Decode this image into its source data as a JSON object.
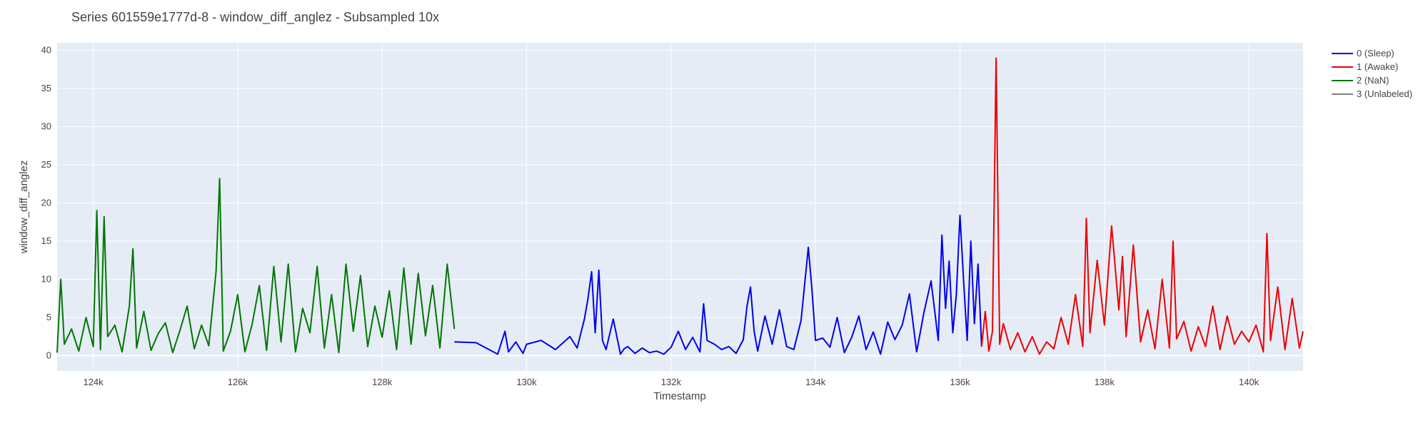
{
  "chart_data": {
    "type": "line",
    "title": "Series 601559e1777d-8 - window_diff_anglez - Subsampled 10x",
    "xlabel": "Timestamp",
    "ylabel": "window_diff_anglez",
    "xlim": [
      123500,
      140750
    ],
    "ylim": [
      -2,
      41
    ],
    "xticks": [
      124000,
      126000,
      128000,
      130000,
      132000,
      134000,
      136000,
      138000,
      140000
    ],
    "xtick_labels": [
      "124k",
      "126k",
      "128k",
      "130k",
      "132k",
      "134k",
      "136k",
      "138k",
      "140k"
    ],
    "yticks": [
      0,
      5,
      10,
      15,
      20,
      25,
      30,
      35,
      40
    ],
    "ytick_labels": [
      "0",
      "5",
      "10",
      "15",
      "20",
      "25",
      "30",
      "35",
      "40"
    ],
    "grid": true,
    "legend_position": "top-right outside",
    "series": [
      {
        "name": "0 (Sleep)",
        "color": "#0000ee",
        "x": [
          129000,
          129300,
          129600,
          129700,
          129750,
          129850,
          129950,
          130000,
          130200,
          130400,
          130600,
          130700,
          130800,
          130850,
          130900,
          130950,
          131000,
          131050,
          131100,
          131200,
          131300,
          131350,
          131400,
          131500,
          131600,
          131700,
          131800,
          131900,
          132000,
          132100,
          132200,
          132300,
          132400,
          132450,
          132500,
          132600,
          132700,
          132800,
          132900,
          133000,
          133050,
          133100,
          133150,
          133200,
          133300,
          133400,
          133500,
          133600,
          133700,
          133800,
          133900,
          133950,
          134000,
          134100,
          134200,
          134300,
          134400,
          134500,
          134600,
          134700,
          134800,
          134900,
          135000,
          135100,
          135200,
          135300,
          135400,
          135500,
          135600,
          135700,
          135750,
          135800,
          135850,
          135900,
          135950,
          136000,
          136050,
          136100,
          136150,
          136200,
          136250,
          136300
        ],
        "y": [
          1.8,
          1.7,
          0.2,
          3.2,
          0.5,
          1.8,
          0.3,
          1.5,
          2.0,
          0.8,
          2.5,
          1.0,
          4.8,
          7.5,
          11.0,
          3.0,
          11.2,
          2.0,
          0.8,
          4.8,
          0.2,
          0.9,
          1.2,
          0.3,
          1.0,
          0.4,
          0.6,
          0.2,
          1.1,
          3.2,
          0.8,
          2.4,
          0.5,
          6.8,
          2.0,
          1.5,
          0.8,
          1.2,
          0.3,
          2.1,
          6.4,
          9.0,
          3.2,
          0.6,
          5.2,
          1.5,
          6.0,
          1.2,
          0.8,
          4.6,
          14.2,
          8.8,
          2.0,
          2.3,
          1.1,
          5.0,
          0.4,
          2.4,
          5.2,
          0.8,
          3.1,
          0.2,
          4.4,
          2.1,
          4.0,
          8.1,
          0.5,
          5.6,
          9.8,
          2.0,
          15.8,
          6.2,
          12.4,
          3.0,
          8.0,
          18.4,
          9.8,
          2.0,
          15.0,
          4.2,
          12.0,
          1.2
        ]
      },
      {
        "name": "1 (Awake)",
        "color": "#ee0000",
        "x": [
          136300,
          136350,
          136400,
          136450,
          136500,
          136550,
          136600,
          136700,
          136800,
          136900,
          137000,
          137100,
          137200,
          137300,
          137400,
          137500,
          137600,
          137700,
          137750,
          137800,
          137900,
          138000,
          138100,
          138200,
          138250,
          138300,
          138400,
          138500,
          138600,
          138700,
          138800,
          138900,
          138950,
          139000,
          139100,
          139200,
          139300,
          139400,
          139500,
          139600,
          139700,
          139800,
          139900,
          140000,
          140100,
          140200,
          140250,
          140300,
          140400,
          140500,
          140600,
          140700,
          140750
        ],
        "y": [
          1.2,
          5.8,
          0.6,
          3.2,
          39.0,
          1.5,
          4.2,
          0.8,
          3.0,
          0.5,
          2.5,
          0.2,
          1.8,
          0.9,
          5.0,
          1.5,
          8.0,
          1.2,
          18.0,
          3.0,
          12.5,
          4.0,
          17.0,
          6.0,
          13.0,
          2.5,
          14.5,
          1.8,
          6.0,
          0.9,
          10.0,
          1.0,
          15.0,
          2.2,
          4.5,
          0.6,
          3.8,
          1.2,
          6.5,
          0.8,
          5.2,
          1.5,
          3.2,
          1.8,
          4.0,
          0.5,
          16.0,
          2.0,
          9.0,
          0.8,
          7.5,
          1.0,
          3.2
        ]
      },
      {
        "name": "2 (NaN)",
        "color": "#007700",
        "x": [
          123500,
          123550,
          123600,
          123700,
          123800,
          123900,
          124000,
          124050,
          124100,
          124150,
          124200,
          124300,
          124400,
          124500,
          124550,
          124600,
          124700,
          124800,
          124900,
          125000,
          125100,
          125200,
          125300,
          125400,
          125500,
          125600,
          125700,
          125750,
          125800,
          125900,
          126000,
          126100,
          126200,
          126300,
          126400,
          126500,
          126600,
          126700,
          126800,
          126900,
          127000,
          127100,
          127200,
          127300,
          127400,
          127500,
          127600,
          127700,
          127800,
          127900,
          128000,
          128100,
          128200,
          128300,
          128400,
          128500,
          128600,
          128700,
          128800,
          128900,
          129000
        ],
        "y": [
          0.4,
          10.0,
          1.5,
          3.5,
          0.6,
          5.0,
          1.2,
          19.0,
          0.8,
          18.2,
          2.5,
          4.0,
          0.5,
          6.5,
          14.0,
          1.0,
          5.8,
          0.7,
          2.9,
          4.3,
          0.4,
          3.3,
          6.5,
          0.9,
          4.0,
          1.3,
          11.0,
          23.2,
          0.6,
          3.2,
          8.0,
          0.5,
          4.1,
          9.2,
          0.7,
          11.7,
          1.8,
          12.0,
          0.5,
          6.2,
          3.0,
          11.7,
          1.0,
          8.0,
          0.4,
          12.0,
          3.2,
          10.5,
          1.2,
          6.5,
          2.4,
          8.5,
          0.8,
          11.5,
          1.5,
          10.8,
          2.6,
          9.2,
          1.0,
          12.0,
          3.5
        ]
      },
      {
        "name": "3 (Unlabeled)",
        "color": "#808080",
        "x": [],
        "y": []
      }
    ]
  }
}
